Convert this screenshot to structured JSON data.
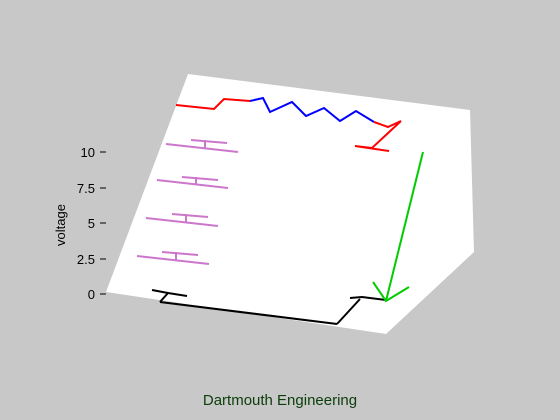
{
  "axes": {
    "ylabel": "voltage",
    "yticks": [
      "0",
      "2.5",
      "5",
      "7.5",
      "10"
    ]
  },
  "colors": {
    "background": "#c8c8c8",
    "plane": "#ffffff",
    "resistor_wire": "#ff0000",
    "resistor_zigzag": "#0000ff",
    "capacitor_plates": "#cc77cc",
    "ground_wire": "#000000",
    "arrow": "#00cc00"
  },
  "footer_text": "Dartmouth Engineering"
}
